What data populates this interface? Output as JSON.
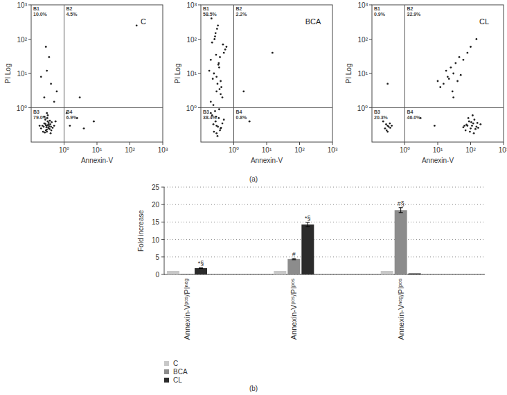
{
  "captions": [
    "(a)",
    "(b)"
  ],
  "chart_data": [
    {
      "type": "scatter",
      "title": "C",
      "x_label": "Annexin-V",
      "y_label": "PI Log",
      "log": true,
      "xlim": [
        0.1,
        1000
      ],
      "ylim": [
        0.1,
        1000
      ],
      "xticks": [
        {
          "value": 1,
          "label": "10⁰"
        },
        {
          "value": 10,
          "label": "10¹"
        },
        {
          "value": 100,
          "label": "10²"
        },
        {
          "value": 1000,
          "label": "10³"
        }
      ],
      "yticks": [
        {
          "value": 1,
          "label": "10⁰"
        },
        {
          "value": 10,
          "label": "10¹"
        },
        {
          "value": 100,
          "label": "10²"
        },
        {
          "value": 1000,
          "label": "10³"
        }
      ],
      "quadrant_x": 1,
      "quadrant_y": 1,
      "quadrants": {
        "labels": [
          "B1",
          "B2",
          "B3",
          "B4"
        ],
        "values": [
          10.0,
          4.5,
          79.0,
          6.9
        ],
        "value_labels": [
          "10.0%",
          "4.5%",
          "79.0%",
          "6.9%"
        ]
      },
      "x": [
        0.3,
        0.35,
        0.25,
        0.4,
        0.28,
        0.32,
        0.22,
        0.38,
        0.45,
        0.3,
        0.27,
        0.33,
        0.36,
        0.24,
        0.42,
        0.29,
        0.31,
        0.26,
        0.34,
        0.5,
        0.2,
        0.37,
        0.3,
        0.28,
        0.35,
        0.23,
        0.41,
        0.32,
        0.27,
        0.39,
        0.18,
        0.55,
        0.3,
        0.33,
        0.25,
        0.25,
        0.4,
        0.3,
        0.5,
        0.2,
        0.35,
        0.6,
        0.28,
        1.5,
        2.5,
        4,
        1.2,
        8,
        3,
        160
      ],
      "values": [
        0.3,
        0.25,
        0.35,
        0.28,
        0.22,
        0.4,
        0.3,
        0.33,
        0.26,
        0.2,
        0.45,
        0.32,
        0.24,
        0.28,
        0.38,
        0.27,
        0.5,
        0.19,
        0.36,
        0.3,
        0.25,
        0.42,
        0.23,
        0.31,
        0.29,
        0.2,
        0.22,
        0.6,
        0.34,
        0.18,
        0.3,
        0.4,
        0.7,
        0.26,
        0.55,
        2,
        5,
        12,
        1.5,
        8,
        30,
        3,
        60,
        0.3,
        0.5,
        0.25,
        0.7,
        0.4,
        2,
        250
      ],
      "color": "#222222",
      "grid": false
    },
    {
      "type": "scatter",
      "title": "BCA",
      "x_label": "Annexin-V",
      "y_label": "PI Log",
      "log": true,
      "xlim": [
        0.1,
        1000
      ],
      "ylim": [
        0.1,
        1000
      ],
      "xticks": [
        {
          "value": 1,
          "label": "10⁰"
        },
        {
          "value": 10,
          "label": "10¹"
        },
        {
          "value": 100,
          "label": "10²"
        },
        {
          "value": 1000,
          "label": "10³"
        }
      ],
      "yticks": [
        {
          "value": 1,
          "label": "10⁰"
        },
        {
          "value": 10,
          "label": "10¹"
        },
        {
          "value": 100,
          "label": "10²"
        },
        {
          "value": 1000,
          "label": "10³"
        }
      ],
      "quadrant_x": 1,
      "quadrant_y": 1,
      "quadrants": {
        "labels": [
          "B1",
          "B2",
          "B3",
          "B4"
        ],
        "values": [
          58.5,
          2.2,
          38.4,
          0.8
        ],
        "value_labels": [
          "58.5%",
          "2.2%",
          "38.4%",
          "0.8%"
        ]
      },
      "x": [
        0.2,
        0.3,
        0.4,
        0.25,
        0.35,
        0.5,
        0.22,
        0.28,
        0.45,
        0.32,
        0.18,
        0.38,
        0.6,
        0.27,
        0.33,
        0.24,
        0.42,
        0.3,
        0.36,
        0.2,
        0.55,
        0.26,
        0.31,
        0.4,
        0.23,
        0.34,
        0.29,
        0.47,
        0.21,
        0.37,
        0.3,
        0.25,
        0.35,
        0.4,
        0.2,
        0.28,
        0.32,
        0.45,
        0.22,
        0.38,
        0.27,
        0.33,
        0.5,
        0.3,
        0.24,
        0.36,
        0.29,
        0.41,
        2,
        15,
        3
      ],
      "values": [
        1.5,
        3,
        6,
        10,
        20,
        40,
        80,
        150,
        2,
        5,
        12,
        30,
        60,
        120,
        250,
        1.2,
        4,
        8,
        15,
        25,
        50,
        100,
        200,
        2.5,
        7,
        18,
        35,
        70,
        400,
        3.5,
        0.3,
        0.2,
        0.5,
        0.25,
        0.7,
        0.4,
        0.15,
        0.35,
        0.6,
        0.22,
        0.8,
        0.28,
        0.45,
        0.18,
        0.33,
        0.9,
        0.55,
        0.26,
        3,
        40,
        0.4
      ],
      "color": "#222222",
      "grid": false
    },
    {
      "type": "scatter",
      "title": "CL",
      "x_label": "Annexin-V",
      "y_label": "PI Log",
      "log": true,
      "xlim": [
        0.1,
        1000
      ],
      "ylim": [
        0.1,
        1000
      ],
      "xticks": [
        {
          "value": 1,
          "label": "10⁰"
        },
        {
          "value": 10,
          "label": "10¹"
        },
        {
          "value": 100,
          "label": "10²"
        },
        {
          "value": 1000,
          "label": "10³"
        }
      ],
      "yticks": [
        {
          "value": 1,
          "label": "10⁰"
        },
        {
          "value": 10,
          "label": "10¹"
        },
        {
          "value": 100,
          "label": "10²"
        },
        {
          "value": 1000,
          "label": "10³"
        }
      ],
      "quadrant_x": 1,
      "quadrant_y": 1,
      "quadrants": {
        "labels": [
          "B1",
          "B2",
          "B3",
          "B4"
        ],
        "values": [
          0.9,
          32.9,
          20.3,
          46.0
        ],
        "value_labels": [
          "0.9%",
          "32.9%",
          "20.3%",
          "46.0%"
        ]
      },
      "x": [
        80,
        100,
        120,
        150,
        90,
        70,
        110,
        200,
        60,
        130,
        95,
        85,
        140,
        105,
        75,
        170,
        115,
        65,
        125,
        160,
        15,
        20,
        30,
        12,
        25,
        40,
        18,
        35,
        22,
        50,
        28,
        10,
        60,
        45,
        80,
        100,
        150,
        30,
        0.3,
        0.25,
        0.35,
        0.28,
        0.32,
        0.22,
        0.4,
        0.3,
        0.27,
        0.36,
        0.3,
        3,
        8
      ],
      "values": [
        0.3,
        0.25,
        0.35,
        0.28,
        0.4,
        0.22,
        0.3,
        0.33,
        0.27,
        0.45,
        0.2,
        0.5,
        0.24,
        0.38,
        0.32,
        0.26,
        0.6,
        0.3,
        0.18,
        0.36,
        5,
        8,
        10,
        4,
        15,
        6,
        12,
        20,
        7,
        9,
        3,
        6,
        25,
        30,
        40,
        60,
        100,
        2,
        0.3,
        0.25,
        0.35,
        0.22,
        0.28,
        0.4,
        0.3,
        0.2,
        0.33,
        0.26,
        5,
        0.5,
        0.3
      ],
      "color": "#222222",
      "grid": false
    },
    {
      "type": "bar",
      "y_label": "Fold increase",
      "categories": [
        "Annexin-Vᵖᵒˢ/PIⁿᵉᵍ",
        "Annexin-Vᵖᵒˢ/PIᵖᵒˢ",
        "Annexin-Vⁿᵉᵍ/PIᵖᵒˢ"
      ],
      "series": [
        {
          "name": "C",
          "color": "#c8c8c8",
          "values": [
            1,
            1,
            1
          ],
          "errors": [
            null,
            null,
            null
          ],
          "significance": [
            null,
            null,
            null
          ]
        },
        {
          "name": "BCA",
          "color": "#8c8c8c",
          "values": [
            0.2,
            4.4,
            18.4
          ],
          "errors": [
            null,
            0.2,
            0.7
          ],
          "significance": [
            null,
            "#",
            "#§"
          ]
        },
        {
          "name": "CL",
          "color": "#2b2b2b",
          "values": [
            1.8,
            14.3,
            0.3
          ],
          "errors": [
            0.1,
            0.6,
            null
          ],
          "significance": [
            "*§",
            "*§",
            null
          ]
        }
      ],
      "ylim": [
        0,
        25
      ],
      "yticks": [
        0,
        5,
        10,
        15,
        20,
        25
      ],
      "grid": true,
      "legend": "bottom-left"
    }
  ]
}
